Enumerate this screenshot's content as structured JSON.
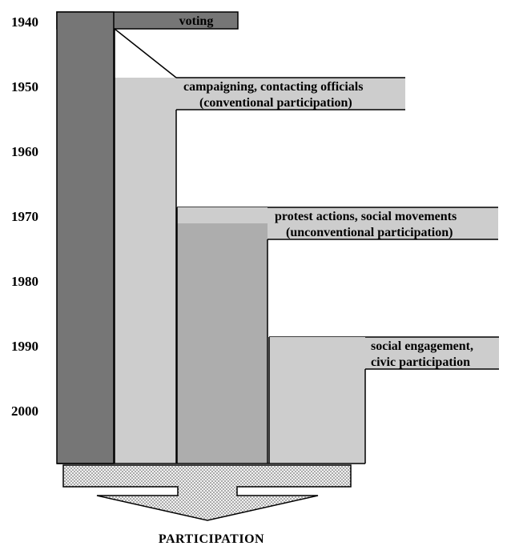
{
  "years": [
    "1940",
    "1950",
    "1960",
    "1970",
    "1980",
    "1990",
    "2000"
  ],
  "bands": {
    "voting": {
      "label": "voting"
    },
    "conventional": {
      "line1": "campaigning, contacting officials",
      "line2": "(conventional participation)"
    },
    "unconventional": {
      "line1": "protest actions, social movements",
      "line2": "(unconventional participation)"
    },
    "civic": {
      "line1": "social engagement,",
      "line2": "civic participation"
    }
  },
  "base_label": "PARTICIPATION",
  "colors": {
    "voting": "#767676",
    "light": "#cdcdcd",
    "medium": "#adadad",
    "banner": "#cdcdcd",
    "base_pattern": "#e6e6e6"
  }
}
